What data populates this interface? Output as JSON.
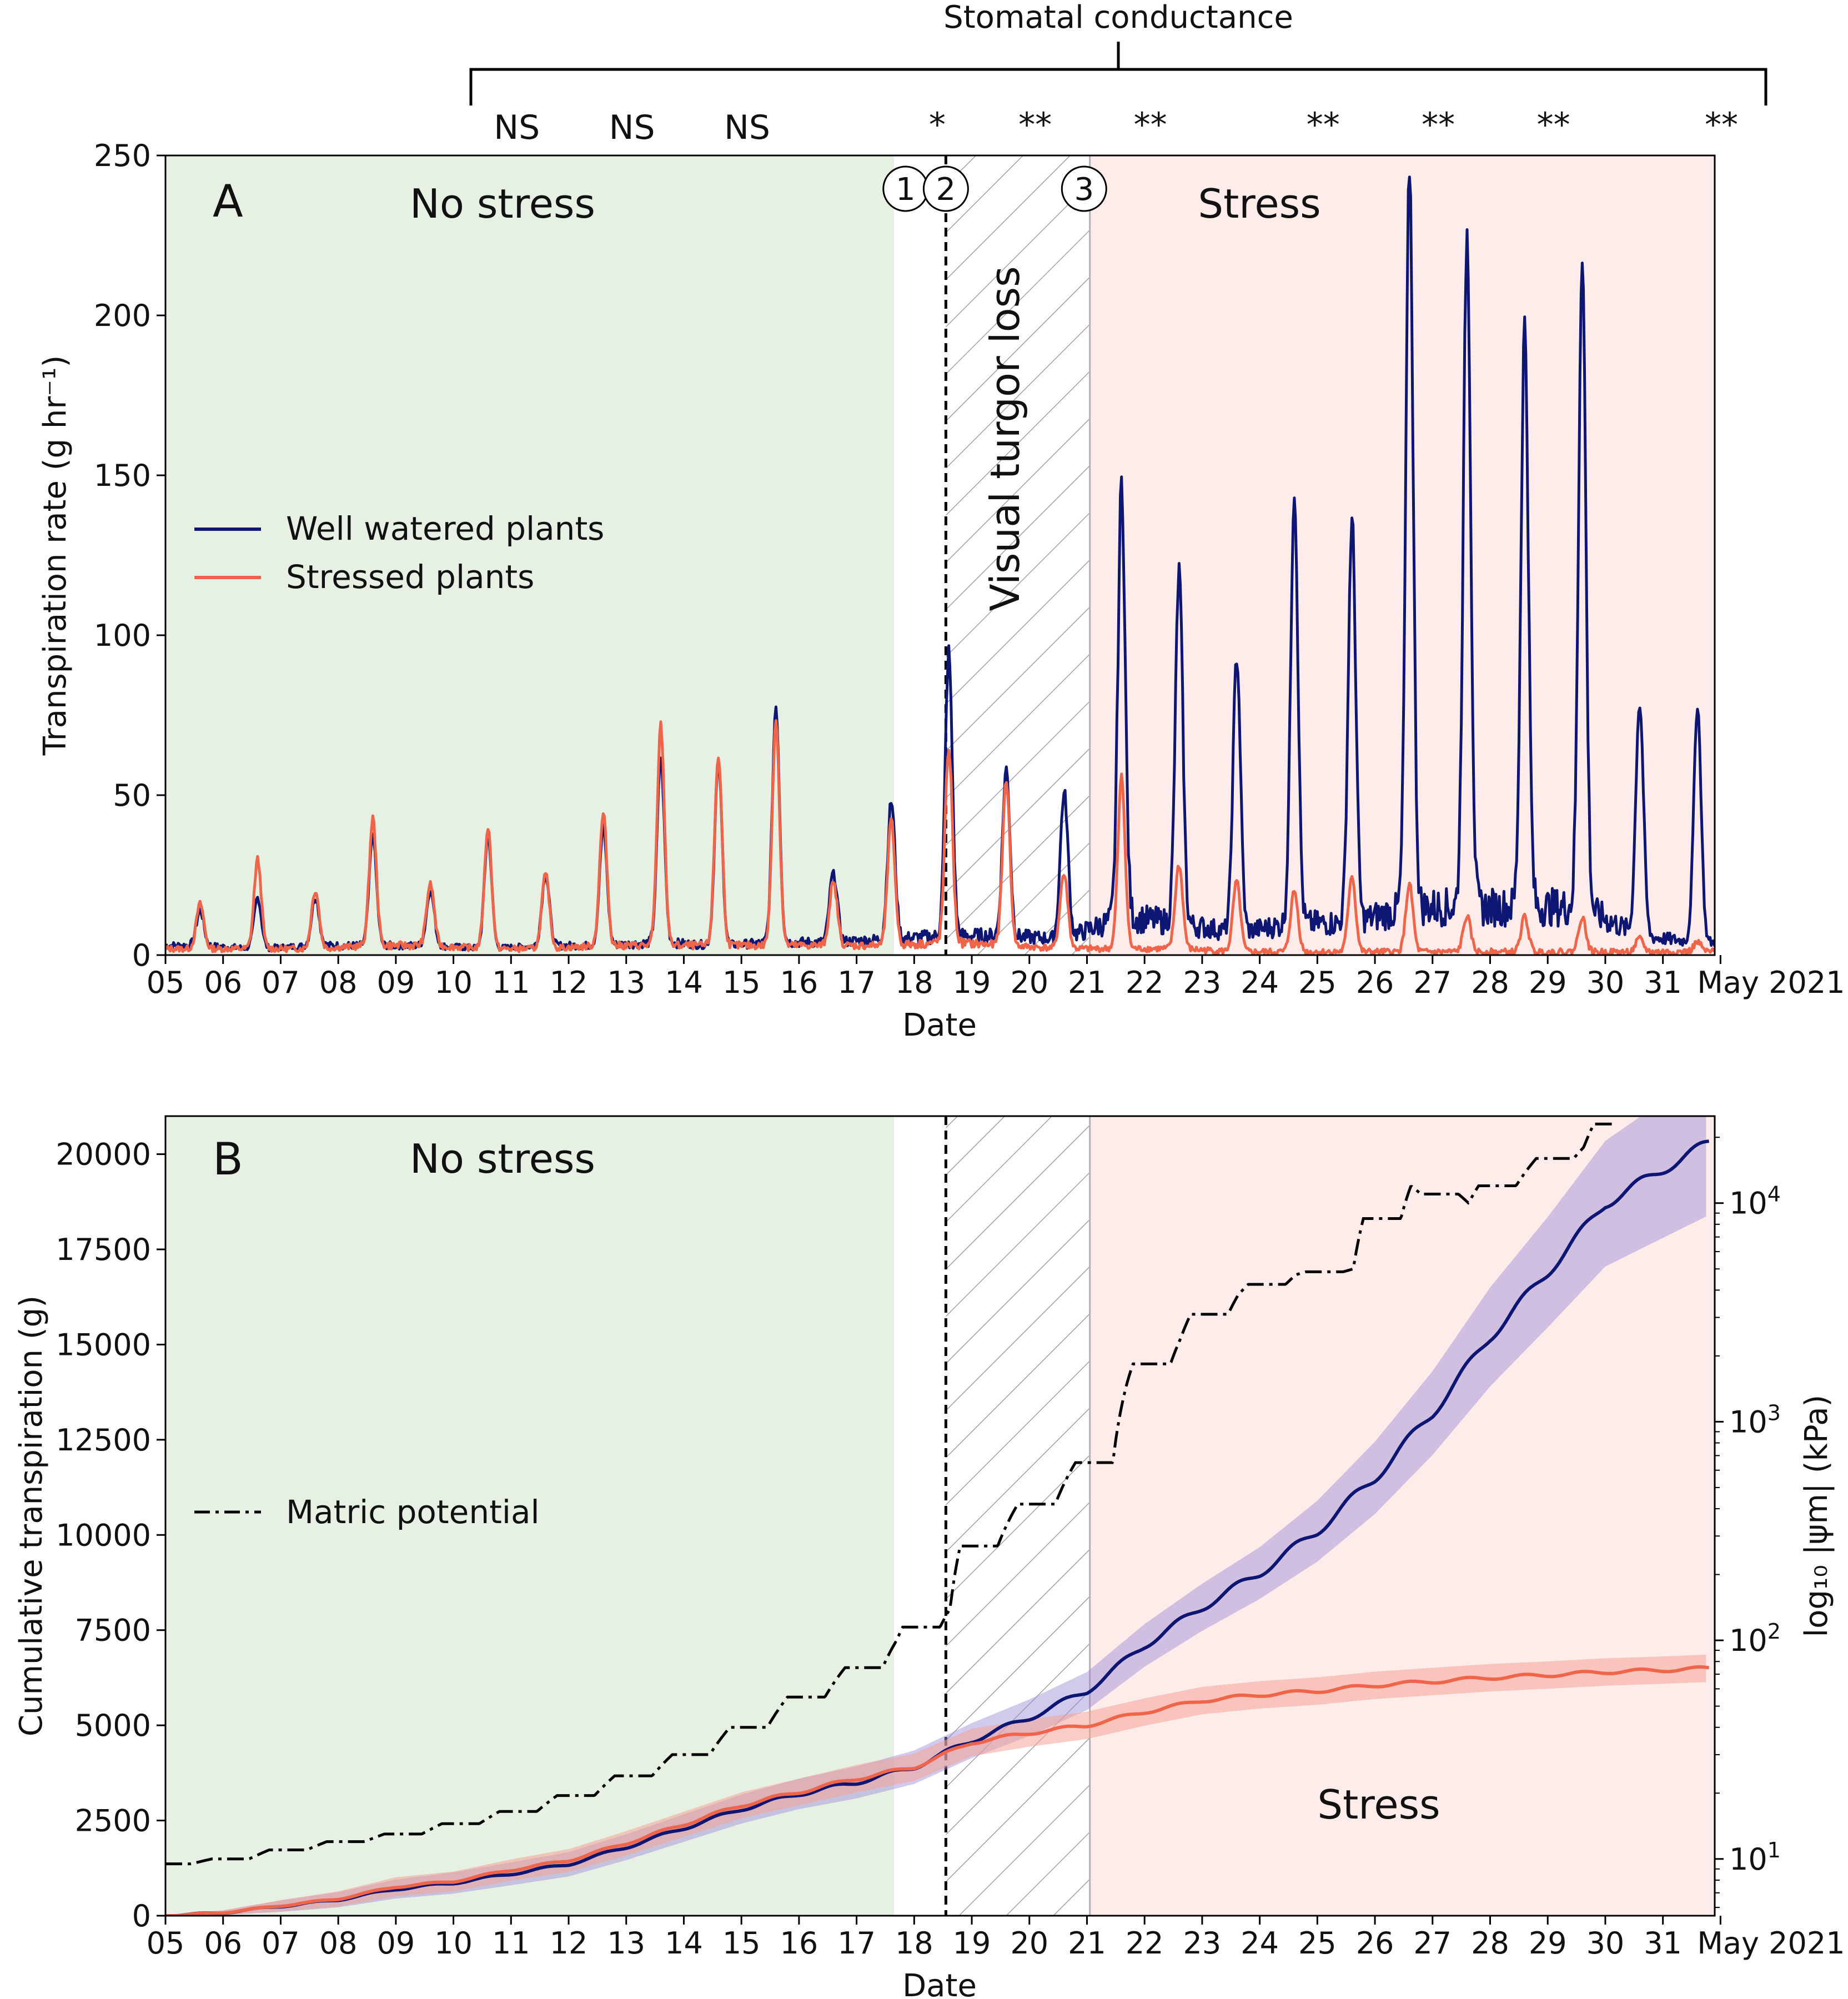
{
  "chart_data": [
    {
      "panel": "A",
      "type": "line",
      "title": "",
      "xlabel": "Date",
      "ylabel": "Transpiration rate (g hr⁻¹)",
      "ylim": [
        0,
        250
      ],
      "yticks": [
        0,
        50,
        100,
        150,
        200,
        250
      ],
      "xlim_days": [
        5,
        31.9
      ],
      "xtick_labels": [
        "05",
        "06",
        "07",
        "08",
        "09",
        "10",
        "11",
        "12",
        "13",
        "14",
        "15",
        "16",
        "17",
        "18",
        "19",
        "20",
        "21",
        "22",
        "23",
        "24",
        "25",
        "26",
        "27",
        "28",
        "29",
        "30",
        "31",
        "May 2021"
      ],
      "regions": [
        {
          "name": "no-stress",
          "label": "No stress",
          "x_start": 5.0,
          "x_end": 17.65,
          "color": "#e6f0e3"
        },
        {
          "name": "turgor-loss",
          "label": "Visual turgor loss",
          "x_start": 18.55,
          "x_end": 21.05,
          "hatched": true
        },
        {
          "name": "stress",
          "label": "Stress",
          "x_start": 21.05,
          "x_end": 31.9,
          "color": "#fdecea"
        }
      ],
      "vline_dashed_x": 18.55,
      "markers": [
        {
          "label": "1",
          "x": 17.85
        },
        {
          "label": "2",
          "x": 18.55
        },
        {
          "label": "3",
          "x": 20.95
        }
      ],
      "significance": {
        "title": "Stomatal conductance",
        "labels": [
          {
            "text": "NS",
            "x": 11.1
          },
          {
            "text": "NS",
            "x": 13.1
          },
          {
            "text": "NS",
            "x": 15.1
          },
          {
            "text": "*",
            "x": 18.4
          },
          {
            "text": "**",
            "x": 20.1
          },
          {
            "text": "**",
            "x": 22.1
          },
          {
            "text": "**",
            "x": 25.1
          },
          {
            "text": "**",
            "x": 27.1
          },
          {
            "text": "**",
            "x": 29.1
          },
          {
            "text": "**",
            "x": 32.1
          }
        ]
      },
      "daily_peaks": {
        "days": [
          5.6,
          6.6,
          7.6,
          8.6,
          9.6,
          10.6,
          11.6,
          12.6,
          13.6,
          14.6,
          15.6,
          16.6,
          17.6,
          18.6,
          19.6,
          20.6,
          21.6,
          22.6,
          23.6,
          24.6,
          25.6,
          26.6,
          27.6,
          28.6,
          29.6,
          30.6,
          31.6
        ],
        "well_watered": [
          14,
          18,
          18,
          38,
          20,
          38,
          25,
          40,
          62,
          60,
          78,
          25,
          48,
          95,
          58,
          50,
          148,
          120,
          93,
          146,
          135,
          247,
          226,
          197,
          221,
          78,
          78
        ],
        "stressed": [
          16,
          30,
          20,
          43,
          22,
          40,
          25,
          44,
          72,
          62,
          74,
          22,
          42,
          65,
          55,
          25,
          56,
          28,
          23,
          20,
          25,
          22,
          12,
          12,
          12,
          5,
          4
        ],
        "well_watered_night": [
          3,
          2,
          3,
          3,
          3,
          2,
          3,
          3,
          4,
          3,
          4,
          4,
          5,
          6,
          6,
          5,
          12,
          10,
          7,
          10,
          10,
          15,
          15,
          15,
          15,
          6,
          4
        ],
        "stressed_night": [
          2,
          2,
          2,
          3,
          3,
          2,
          2,
          3,
          3,
          3,
          3,
          3,
          3,
          4,
          3,
          2,
          2,
          2,
          1,
          1,
          1,
          1,
          1,
          1,
          1,
          1,
          1
        ]
      },
      "series": [
        {
          "name": "Well watered plants",
          "color": "#0d1773"
        },
        {
          "name": "Stressed plants",
          "color": "#f0654a"
        }
      ]
    },
    {
      "panel": "B",
      "type": "line",
      "title": "",
      "xlabel": "Date",
      "ylabel": "Cumulative transpiration (g)",
      "ylabel_right": "log₁₀ |ψm| (kPa)",
      "ylim": [
        0,
        21000
      ],
      "yticks": [
        0,
        2500,
        5000,
        7500,
        10000,
        12500,
        15000,
        17500,
        20000
      ],
      "ylim_right_log": [
        5.5,
        25000
      ],
      "yticks_right": [
        {
          "base": "10",
          "exp": "1",
          "value": 10
        },
        {
          "base": "10",
          "exp": "2",
          "value": 100
        },
        {
          "base": "10",
          "exp": "3",
          "value": 1000
        },
        {
          "base": "10",
          "exp": "4",
          "value": 10000
        }
      ],
      "xlim_days": [
        5,
        31.9
      ],
      "xtick_labels": [
        "05",
        "06",
        "07",
        "08",
        "09",
        "10",
        "11",
        "12",
        "13",
        "14",
        "15",
        "16",
        "17",
        "18",
        "19",
        "20",
        "21",
        "22",
        "23",
        "24",
        "25",
        "26",
        "27",
        "28",
        "29",
        "30",
        "31",
        "May 2021"
      ],
      "regions": [
        {
          "name": "no-stress",
          "label": "No stress",
          "x_start": 5.0,
          "x_end": 17.65
        },
        {
          "name": "turgor-loss",
          "label": "",
          "x_start": 18.55,
          "x_end": 21.05,
          "hatched": true
        },
        {
          "name": "stress",
          "label": "Stress",
          "x_start": 21.05,
          "x_end": 31.9
        }
      ],
      "cumulative": {
        "days": [
          5,
          6,
          7,
          8,
          9,
          10,
          11,
          12,
          13,
          14,
          15,
          16,
          17,
          18,
          19,
          20,
          21,
          22,
          23,
          24,
          25,
          26,
          27,
          28,
          29,
          30,
          31,
          31.8
        ],
        "well_watered": [
          0,
          80,
          250,
          420,
          700,
          860,
          1100,
          1350,
          1800,
          2300,
          2800,
          3200,
          3500,
          3900,
          4600,
          5200,
          5900,
          7100,
          8100,
          9000,
          10100,
          11500,
          13200,
          15200,
          16900,
          18700,
          19600,
          20300
        ],
        "well_watered_band": [
          0,
          60,
          150,
          200,
          250,
          280,
          300,
          320,
          340,
          360,
          380,
          400,
          420,
          440,
          460,
          480,
          500,
          560,
          620,
          680,
          800,
          950,
          1100,
          1300,
          1450,
          1650,
          1800,
          1900
        ],
        "stressed": [
          0,
          80,
          260,
          440,
          760,
          900,
          1200,
          1450,
          1900,
          2400,
          2900,
          3250,
          3600,
          3900,
          4550,
          4800,
          5000,
          5350,
          5650,
          5800,
          5900,
          6050,
          6150,
          6250,
          6320,
          6400,
          6450,
          6500
        ],
        "stressed_band": [
          0,
          60,
          150,
          200,
          250,
          260,
          280,
          300,
          320,
          330,
          340,
          350,
          360,
          360,
          360,
          360,
          360,
          360,
          360,
          360,
          360,
          360,
          360,
          360,
          360,
          360,
          360,
          360
        ]
      },
      "matric_potential_kpa": {
        "days": [
          5,
          6,
          7,
          8,
          9,
          10,
          11,
          12,
          13,
          14,
          15,
          16,
          17,
          17.7,
          18.5,
          19,
          20,
          21,
          21.7,
          22.5,
          23.5,
          24.5,
          25.5,
          26.5,
          27.5,
          28.5,
          29.5,
          30.2
        ],
        "values": [
          9.5,
          10,
          11,
          12,
          13,
          14.5,
          16.5,
          19.5,
          24,
          30,
          40,
          55,
          75,
          100,
          140,
          270,
          420,
          650,
          1500,
          2400,
          3800,
          4700,
          5000,
          12000,
          10000,
          14000,
          18000,
          25000
        ]
      },
      "series": [
        {
          "name": "Well watered plants",
          "color": "#0d1773",
          "band_color": "#9b8ad8"
        },
        {
          "name": "Stressed plants",
          "color": "#f0654a",
          "band_color": "#f4a496"
        },
        {
          "name": "Matric potential",
          "color": "#000000"
        }
      ]
    }
  ],
  "legend": {
    "well_watered": "Well watered plants",
    "stressed": "Stressed plants",
    "matric": "Matric potential"
  },
  "labels": {
    "panel_a": "A",
    "panel_b": "B",
    "no_stress": "No stress",
    "stress": "Stress",
    "turgor": "Visual turgor loss",
    "stomatal": "Stomatal conductance",
    "date": "Date"
  }
}
